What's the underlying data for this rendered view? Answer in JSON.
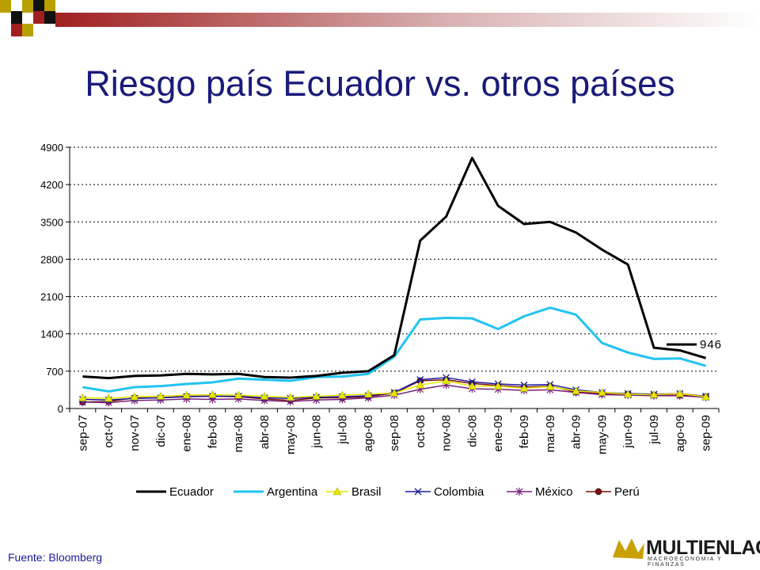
{
  "slide": {
    "title": "Riesgo país Ecuador vs. otros países",
    "source": "Fuente: Bloomberg",
    "logo_text": "MULTIENLACE",
    "logo_tagline": "MACROECONOMIA Y FINANZAS",
    "colors": {
      "title": "#1a1a7a",
      "banner_red": "#a02020",
      "banner_gold": "#b8a000",
      "logo_gold": "#c8a000"
    }
  },
  "chart_data": {
    "type": "line",
    "title": "",
    "xlabel": "",
    "ylabel": "",
    "ylim": [
      0,
      4900
    ],
    "yticks": [
      0,
      700,
      1400,
      2100,
      2800,
      3500,
      4200,
      4900
    ],
    "grid": true,
    "legend_position": "bottom",
    "categories": [
      "sep-07",
      "oct-07",
      "nov-07",
      "dic-07",
      "ene-08",
      "feb-08",
      "mar-08",
      "abr-08",
      "may-08",
      "jun-08",
      "jul-08",
      "ago-08",
      "sep-08",
      "oct-08",
      "nov-08",
      "dic-08",
      "ene-09",
      "feb-09",
      "mar-09",
      "abr-09",
      "may-09",
      "jun-09",
      "jul-09",
      "ago-09",
      "sep-09"
    ],
    "annotation": {
      "label": "946",
      "series": "Ecuador",
      "value": 946
    },
    "series": [
      {
        "name": "Ecuador",
        "color": "#000000",
        "width": 3,
        "marker": "none",
        "values": [
          600,
          570,
          610,
          620,
          650,
          640,
          650,
          590,
          580,
          610,
          670,
          700,
          1000,
          3150,
          3600,
          4700,
          3800,
          3460,
          3500,
          3300,
          2980,
          2700,
          1140,
          1090,
          946
        ]
      },
      {
        "name": "Argentina",
        "color": "#22c3f2",
        "width": 3,
        "marker": "none",
        "values": [
          400,
          320,
          400,
          420,
          460,
          490,
          560,
          540,
          520,
          590,
          600,
          650,
          970,
          1670,
          1700,
          1690,
          1490,
          1730,
          1890,
          1760,
          1230,
          1050,
          930,
          940,
          800
        ]
      },
      {
        "name": "Brasil",
        "color": "#e6e600",
        "width": 1.5,
        "marker": "triangle",
        "values": [
          200,
          190,
          220,
          230,
          250,
          260,
          250,
          230,
          210,
          230,
          250,
          270,
          290,
          440,
          520,
          420,
          420,
          380,
          410,
          330,
          300,
          270,
          260,
          280,
          220
        ]
      },
      {
        "name": "Colombia",
        "color": "#1a1a9a",
        "width": 1.5,
        "marker": "x",
        "values": [
          170,
          160,
          190,
          200,
          220,
          230,
          230,
          200,
          190,
          210,
          220,
          240,
          300,
          540,
          580,
          500,
          460,
          440,
          450,
          350,
          300,
          280,
          270,
          280,
          230
        ]
      },
      {
        "name": "México",
        "color": "#7a1f7a",
        "width": 1.5,
        "marker": "star",
        "values": [
          120,
          110,
          150,
          160,
          180,
          170,
          180,
          150,
          130,
          160,
          170,
          200,
          250,
          360,
          440,
          370,
          360,
          340,
          350,
          300,
          260,
          250,
          240,
          240,
          210
        ]
      },
      {
        "name": "Perú",
        "color": "#7a0f0f",
        "width": 1.5,
        "marker": "dot",
        "values": [
          120,
          130,
          200,
          200,
          230,
          230,
          220,
          180,
          150,
          200,
          200,
          220,
          290,
          520,
          540,
          470,
          430,
          400,
          420,
          310,
          280,
          270,
          250,
          250,
          220
        ]
      }
    ]
  }
}
